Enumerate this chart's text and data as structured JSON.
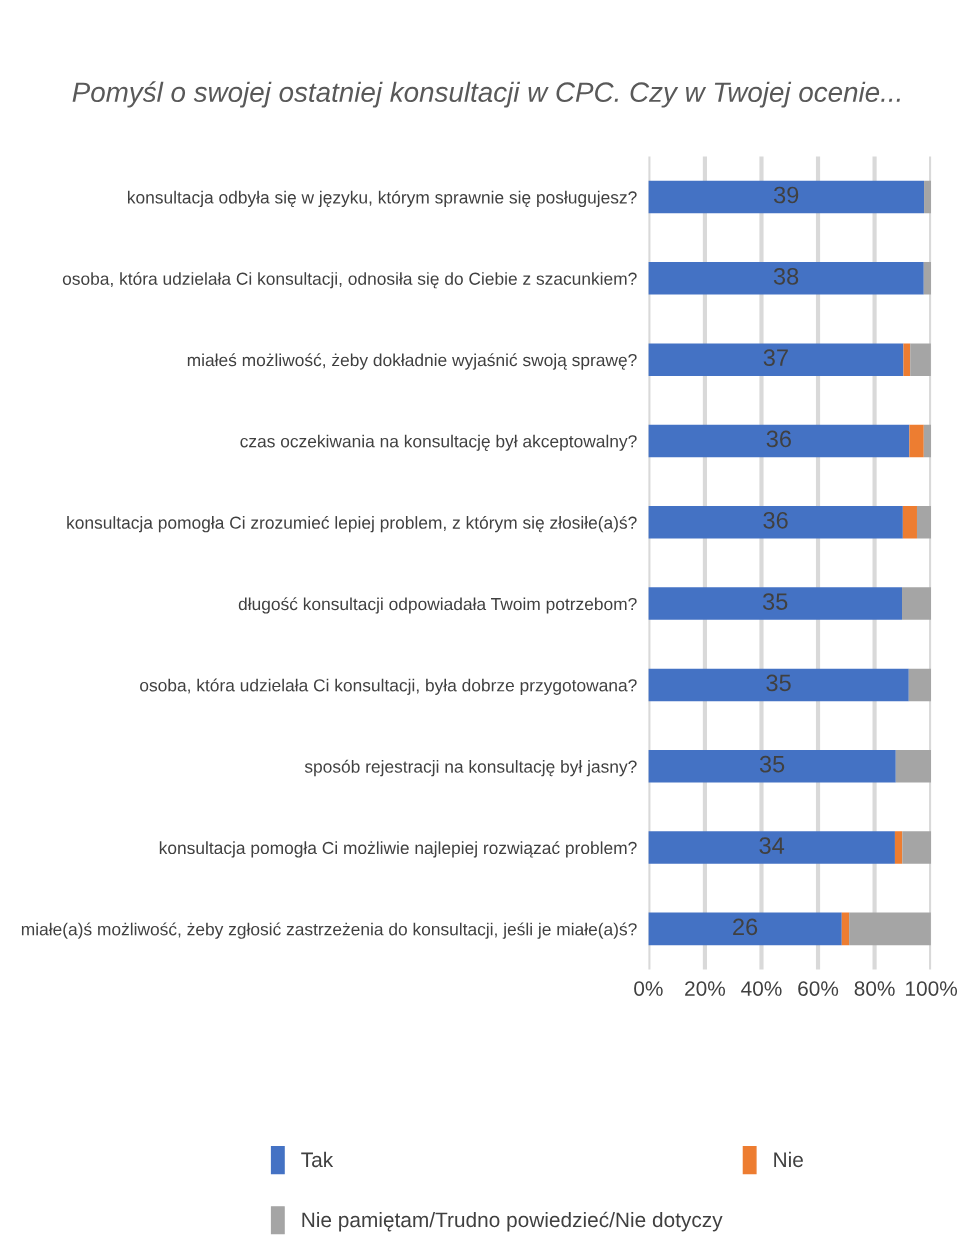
{
  "chart_data": {
    "type": "bar",
    "orientation": "horizontal",
    "stacked": true,
    "title": "Pomyśl o swojej ostatniej konsultacji w CPC. Czy w Twojej ocenie...",
    "categories": [
      "konsultacja odbyła się w języku, którym sprawnie się posługujesz?",
      "osoba, która udzielała Ci konsultacji, odnosiła się do Ciebie z szacunkiem?",
      "miałeś możliwość, żeby dokładnie wyjaśnić swoją sprawę?",
      "czas oczekiwania na konsultację był akceptowalny?",
      "konsultacja pomogła Ci zrozumieć lepiej problem, z którym się złosiłe(a)ś?",
      "długość konsultacji odpowiadała Twoim potrzebom?",
      "osoba, która udzielała Ci konsultacji, była dobrze przygotowana?",
      "sposób rejestracji na konsultację był jasny?",
      "konsultacja pomogła Ci możliwie najlepiej rozwiązać problem?",
      "miałe(a)ś możliwość, żeby zgłosić zastrzeżenia do konsultacji, jeśli je miałe(a)ś?"
    ],
    "series": [
      {
        "name": "Tak",
        "color": "#4472c4",
        "values": [
          97.5,
          97.4,
          90.2,
          92.3,
          90.0,
          89.7,
          92.1,
          87.5,
          87.2,
          68.4
        ]
      },
      {
        "name": "Nie",
        "color": "#ed7d31",
        "values": [
          0,
          0,
          2.4,
          5.1,
          5.0,
          0,
          0,
          0,
          2.6,
          2.6
        ]
      },
      {
        "name": "Nie pamiętam/Trudno powiedzieć/Nie dotyczy",
        "color": "#a5a5a5",
        "values": [
          2.5,
          2.6,
          7.3,
          2.6,
          5.0,
          10.3,
          7.9,
          12.5,
          10.3,
          28.9
        ]
      }
    ],
    "annotations": [
      "39",
      "38",
      "37",
      "36",
      "36",
      "35",
      "35",
      "35",
      "34",
      "26"
    ],
    "xlim": [
      0,
      100
    ],
    "xticks": [
      {
        "value": 0,
        "label": "0%"
      },
      {
        "value": 20,
        "label": "20%"
      },
      {
        "value": 40,
        "label": "40%"
      },
      {
        "value": 60,
        "label": "60%"
      },
      {
        "value": 80,
        "label": "80%"
      },
      {
        "value": 100,
        "label": "100%"
      }
    ],
    "grid": "x",
    "legend": "bottom"
  }
}
